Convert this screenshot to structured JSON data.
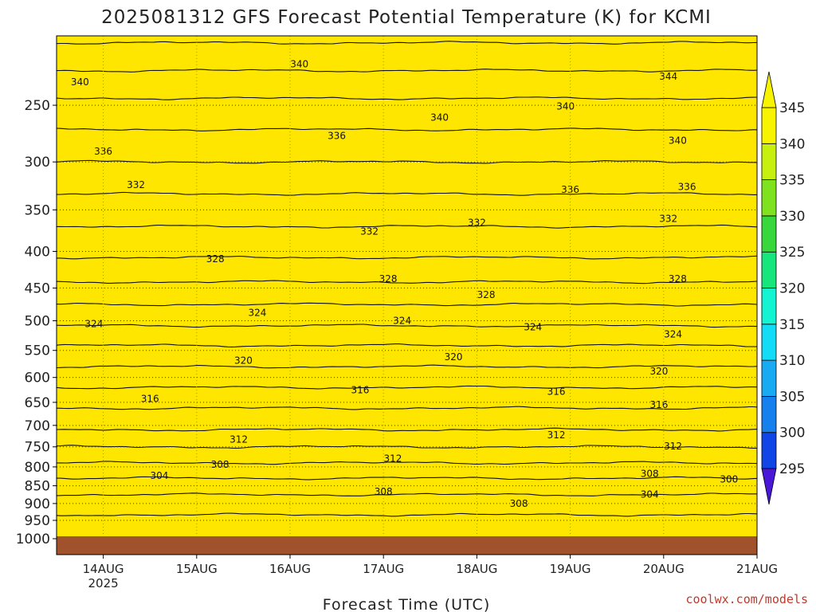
{
  "chart_data": {
    "type": "heatmap",
    "title": "2025081312 GFS Forecast Potential Temperature (K) for KCMI",
    "xlabel": "Forecast Time (UTC)",
    "ylabel": "",
    "x_ticks": [
      {
        "label": "14AUG",
        "sub": "2025",
        "day": 1
      },
      {
        "label": "15AUG",
        "sub": "",
        "day": 2
      },
      {
        "label": "16AUG",
        "sub": "",
        "day": 3
      },
      {
        "label": "17AUG",
        "sub": "",
        "day": 4
      },
      {
        "label": "18AUG",
        "sub": "",
        "day": 5
      },
      {
        "label": "19AUG",
        "sub": "",
        "day": 6
      },
      {
        "label": "20AUG",
        "sub": "",
        "day": 7
      },
      {
        "label": "21AUG",
        "sub": "",
        "day": 8
      }
    ],
    "x_range_days": [
      0.5,
      8.0
    ],
    "y_ticks_hpa": [
      250,
      300,
      350,
      400,
      450,
      500,
      550,
      600,
      650,
      700,
      750,
      800,
      850,
      900,
      950,
      1000
    ],
    "y_range_hpa": [
      200,
      1000
    ],
    "y_scale": "log",
    "grid": true,
    "colorbar": {
      "levels": [
        295,
        300,
        305,
        310,
        315,
        320,
        325,
        330,
        335,
        340,
        345
      ],
      "colors": [
        "#1a0fd6",
        "#1045e6",
        "#1680ee",
        "#18aaf2",
        "#12dcf6",
        "#12f4d2",
        "#16e67c",
        "#38d83c",
        "#7ee21e",
        "#c8f00e",
        "#f8f400"
      ],
      "extends": "both"
    },
    "profile": {
      "pressure_hpa": [
        1000,
        950,
        900,
        850,
        800,
        750,
        700,
        650,
        600,
        550,
        500,
        450,
        400,
        350,
        300,
        250,
        200
      ],
      "theta_k": [
        302.5,
        303.5,
        305.0,
        307.0,
        309.5,
        312.0,
        314.5,
        316.5,
        319.0,
        321.5,
        324.5,
        327.5,
        330.5,
        333.0,
        336.0,
        339.5,
        344.5
      ]
    },
    "contour_interval_k": 2,
    "contour_labels": [
      {
        "text": "340",
        "day": 3.1,
        "p": 219
      },
      {
        "text": "340",
        "day": 0.75,
        "p": 232
      },
      {
        "text": "344",
        "day": 7.05,
        "p": 228
      },
      {
        "text": "340",
        "day": 4.6,
        "p": 260
      },
      {
        "text": "340",
        "day": 5.95,
        "p": 251
      },
      {
        "text": "340",
        "day": 7.15,
        "p": 280
      },
      {
        "text": "336",
        "day": 1.0,
        "p": 290
      },
      {
        "text": "336",
        "day": 3.5,
        "p": 276
      },
      {
        "text": "336",
        "day": 6.0,
        "p": 328
      },
      {
        "text": "336",
        "day": 7.25,
        "p": 325
      },
      {
        "text": "332",
        "day": 1.35,
        "p": 323
      },
      {
        "text": "332",
        "day": 3.85,
        "p": 375
      },
      {
        "text": "332",
        "day": 5.0,
        "p": 365
      },
      {
        "text": "332",
        "day": 7.05,
        "p": 360
      },
      {
        "text": "328",
        "day": 2.2,
        "p": 410
      },
      {
        "text": "328",
        "day": 4.05,
        "p": 437
      },
      {
        "text": "328",
        "day": 5.1,
        "p": 460
      },
      {
        "text": "328",
        "day": 7.15,
        "p": 437
      },
      {
        "text": "324",
        "day": 0.9,
        "p": 505
      },
      {
        "text": "324",
        "day": 2.65,
        "p": 487
      },
      {
        "text": "324",
        "day": 4.2,
        "p": 500
      },
      {
        "text": "324",
        "day": 5.6,
        "p": 510
      },
      {
        "text": "324",
        "day": 7.1,
        "p": 522
      },
      {
        "text": "320",
        "day": 2.5,
        "p": 568
      },
      {
        "text": "320",
        "day": 4.75,
        "p": 562
      },
      {
        "text": "320",
        "day": 6.95,
        "p": 588
      },
      {
        "text": "316",
        "day": 1.5,
        "p": 643
      },
      {
        "text": "316",
        "day": 3.75,
        "p": 625
      },
      {
        "text": "316",
        "day": 5.85,
        "p": 628
      },
      {
        "text": "316",
        "day": 6.95,
        "p": 655
      },
      {
        "text": "312",
        "day": 2.45,
        "p": 732
      },
      {
        "text": "312",
        "day": 5.85,
        "p": 722
      },
      {
        "text": "312",
        "day": 7.1,
        "p": 749
      },
      {
        "text": "312",
        "day": 4.1,
        "p": 779
      },
      {
        "text": "308",
        "day": 2.25,
        "p": 794
      },
      {
        "text": "308",
        "day": 6.85,
        "p": 818
      },
      {
        "text": "308",
        "day": 4.0,
        "p": 866
      },
      {
        "text": "308",
        "day": 5.45,
        "p": 900
      },
      {
        "text": "304",
        "day": 1.6,
        "p": 823
      },
      {
        "text": "304",
        "day": 6.85,
        "p": 874
      },
      {
        "text": "300",
        "day": 7.7,
        "p": 833
      }
    ],
    "ground": {
      "color": "#a0522d"
    }
  },
  "credit": "coolwx.com/models"
}
